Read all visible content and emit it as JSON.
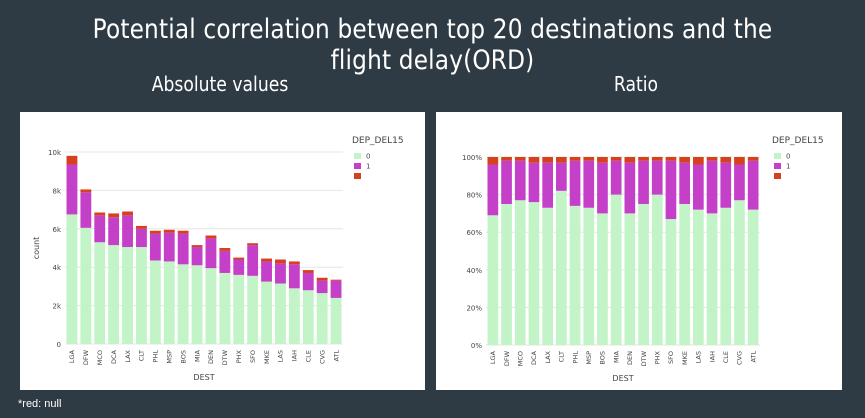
{
  "header": {
    "title": "Potential correlation between top 20 destinations and the flight delay(ORD)",
    "left_subtitle": "Absolute values",
    "right_subtitle": "Ratio"
  },
  "footnote": "*red: null",
  "colors": {
    "zero": "#c2f4c7",
    "one": "#c440c9",
    "null": "#d6401d",
    "grid": "#e6e6e6",
    "axis": "#444444"
  },
  "chart_data": [
    {
      "type": "bar",
      "stacked": true,
      "title": "Absolute values",
      "xlabel": "DEST",
      "ylabel": "count",
      "ylim": [
        0,
        10000
      ],
      "yticks": [
        0,
        2000,
        4000,
        6000,
        8000,
        10000
      ],
      "ytick_labels": [
        "0",
        "2k",
        "4k",
        "6k",
        "8k",
        "10k"
      ],
      "legend_title": "DEP_DEL15",
      "legend_position": "top-right",
      "categories": [
        "LGA",
        "DFW",
        "MCO",
        "DCA",
        "LAX",
        "CLT",
        "PHL",
        "MSP",
        "BOS",
        "MIA",
        "DEN",
        "DTW",
        "PHX",
        "SFO",
        "MKE",
        "LAS",
        "IAH",
        "CLE",
        "CVG",
        "ATL"
      ],
      "series": [
        {
          "name": "0",
          "values": [
            6750,
            6050,
            5300,
            5150,
            5050,
            5050,
            4350,
            4300,
            4150,
            4100,
            3950,
            3700,
            3600,
            3550,
            3250,
            3150,
            2900,
            2800,
            2650,
            2400
          ]
        },
        {
          "name": "1",
          "values": [
            2600,
            1850,
            1400,
            1450,
            1650,
            950,
            1400,
            1500,
            1600,
            950,
            1550,
            1150,
            800,
            1600,
            1050,
            1050,
            1250,
            900,
            650,
            900
          ]
        },
        {
          "name": "",
          "values": [
            450,
            150,
            150,
            200,
            200,
            150,
            150,
            150,
            150,
            100,
            150,
            150,
            100,
            100,
            150,
            200,
            150,
            150,
            150,
            50
          ]
        }
      ]
    },
    {
      "type": "bar",
      "stacked": true,
      "title": "Ratio",
      "xlabel": "DEST",
      "ylabel": "",
      "ylim": [
        0,
        100
      ],
      "yticks": [
        0,
        20,
        40,
        60,
        80,
        100
      ],
      "ytick_labels": [
        "0%",
        "20%",
        "40%",
        "60%",
        "80%",
        "100%"
      ],
      "legend_title": "DEP_DEL15",
      "legend_position": "top-right",
      "categories": [
        "LGA",
        "DFW",
        "MCO",
        "DCA",
        "LAX",
        "CLT",
        "PHL",
        "MSP",
        "BOS",
        "MIA",
        "DEN",
        "DTW",
        "PHX",
        "SFO",
        "MKE",
        "LAS",
        "IAH",
        "CLE",
        "CVG",
        "ATL"
      ],
      "series": [
        {
          "name": "0",
          "values": [
            69,
            75,
            77,
            76,
            73,
            82,
            74,
            73,
            70,
            80,
            70,
            75,
            80,
            67,
            75,
            72,
            70,
            73,
            77,
            72
          ]
        },
        {
          "name": "1",
          "values": [
            27,
            23,
            21,
            21,
            24,
            15,
            24,
            25,
            27,
            18,
            27,
            23,
            18,
            31,
            22,
            24,
            28,
            24,
            19,
            26
          ]
        },
        {
          "name": "",
          "values": [
            4,
            2,
            2,
            3,
            3,
            3,
            2,
            2,
            3,
            2,
            3,
            2,
            2,
            2,
            3,
            4,
            2,
            3,
            4,
            2
          ]
        }
      ]
    }
  ]
}
